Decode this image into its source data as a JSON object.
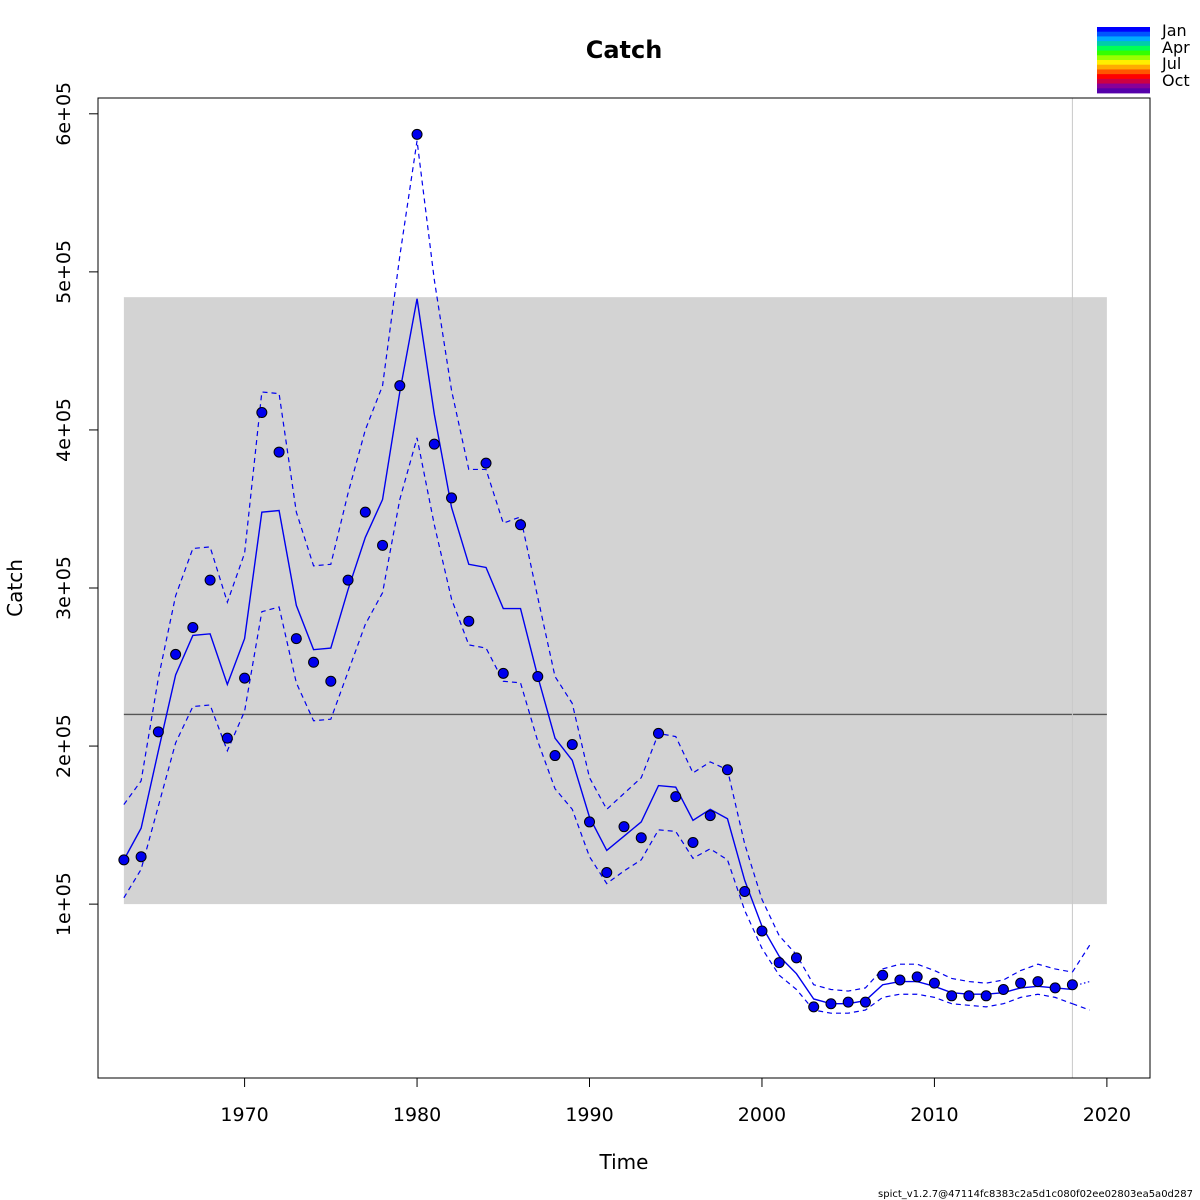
{
  "chart_data": {
    "type": "line",
    "title": "Catch",
    "xlabel": "Time",
    "ylabel": "Catch",
    "xlim": [
      1961.5,
      2022.5
    ],
    "ylim": [
      -10000,
      610000
    ],
    "x_ticks": [
      1970,
      1980,
      1990,
      2000,
      2010,
      2020
    ],
    "x_tick_labels": [
      "1970",
      "1980",
      "1990",
      "2000",
      "2010",
      "2020"
    ],
    "y_ticks": [
      100000,
      200000,
      300000,
      400000,
      500000,
      600000
    ],
    "y_tick_labels": [
      "1e+05",
      "2e+05",
      "3e+05",
      "4e+05",
      "5e+05",
      "6e+05"
    ],
    "grid": false,
    "reference_band": {
      "x": [
        1963,
        2020
      ],
      "y": [
        100000,
        484000
      ],
      "color": "#d3d3d3"
    },
    "reference_line": {
      "y": 220000,
      "color": "#555555"
    },
    "vertical_line": {
      "x": 2018,
      "color": "#c8c8c8"
    },
    "series": [
      {
        "role": "observed",
        "color": "#0000ee",
        "x": [
          1963,
          1964,
          1965,
          1966,
          1967,
          1968,
          1969,
          1970,
          1971,
          1972,
          1973,
          1974,
          1975,
          1976,
          1977,
          1978,
          1979,
          1980,
          1981,
          1982,
          1983,
          1984,
          1985,
          1986,
          1987,
          1988,
          1989,
          1990,
          1991,
          1992,
          1993,
          1994,
          1995,
          1996,
          1997,
          1998,
          1999,
          2000,
          2001,
          2002,
          2003,
          2004,
          2005,
          2006,
          2007,
          2008,
          2009,
          2010,
          2011,
          2012,
          2013,
          2014,
          2015,
          2016,
          2017,
          2018
        ],
        "y": [
          128000,
          130000,
          209000,
          258000,
          275000,
          305000,
          205000,
          243000,
          411000,
          386000,
          268000,
          253000,
          241000,
          305000,
          348000,
          327000,
          428000,
          587000,
          391000,
          357000,
          279000,
          379000,
          246000,
          340000,
          244000,
          194000,
          201000,
          152000,
          120000,
          149000,
          142000,
          208000,
          168000,
          139000,
          156000,
          185000,
          108000,
          83000,
          63000,
          66000,
          35000,
          37000,
          38000,
          38000,
          55000,
          52000,
          54000,
          50000,
          42000,
          42000,
          42000,
          46000,
          50000,
          51000,
          47000,
          49000
        ]
      },
      {
        "role": "estimate",
        "color": "#0000ee",
        "x": [
          1963,
          1964,
          1965,
          1966,
          1967,
          1968,
          1969,
          1970,
          1971,
          1972,
          1973,
          1974,
          1975,
          1976,
          1977,
          1978,
          1979,
          1980,
          1981,
          1982,
          1983,
          1984,
          1985,
          1986,
          1987,
          1988,
          1989,
          1990,
          1991,
          1992,
          1993,
          1994,
          1995,
          1996,
          1997,
          1998,
          1999,
          2000,
          2001,
          2002,
          2003,
          2004,
          2005,
          2006,
          2007,
          2008,
          2009,
          2010,
          2011,
          2012,
          2013,
          2014,
          2015,
          2016,
          2017,
          2018
        ],
        "y": [
          128000,
          148000,
          197000,
          245000,
          270000,
          271000,
          239000,
          268000,
          348000,
          349000,
          289000,
          261000,
          262000,
          299000,
          332000,
          356000,
          424000,
          483000,
          410000,
          351000,
          315000,
          313000,
          287000,
          287000,
          244000,
          205000,
          191000,
          155000,
          134000,
          143000,
          152000,
          175000,
          174000,
          153000,
          160000,
          154000,
          115000,
          86000,
          67000,
          56000,
          40000,
          37000,
          37000,
          39000,
          49000,
          51000,
          51000,
          48000,
          44000,
          43000,
          43000,
          44000,
          47000,
          48000,
          47000,
          46000
        ]
      },
      {
        "role": "upper-ci",
        "color": "#0000ee",
        "x": [
          1963,
          1964,
          1965,
          1966,
          1967,
          1968,
          1969,
          1970,
          1971,
          1972,
          1973,
          1974,
          1975,
          1976,
          1977,
          1978,
          1979,
          1980,
          1981,
          1982,
          1983,
          1984,
          1985,
          1986,
          1987,
          1988,
          1989,
          1990,
          1991,
          1992,
          1993,
          1994,
          1995,
          1996,
          1997,
          1998,
          1999,
          2000,
          2001,
          2002,
          2003,
          2004,
          2005,
          2006,
          2007,
          2008,
          2009,
          2010,
          2011,
          2012,
          2013,
          2014,
          2015,
          2016,
          2017,
          2018
        ],
        "y": [
          163000,
          178000,
          243000,
          295000,
          325000,
          326000,
          291000,
          322000,
          424000,
          423000,
          348000,
          314000,
          315000,
          360000,
          400000,
          428000,
          510000,
          583000,
          495000,
          425000,
          375000,
          375000,
          341000,
          345000,
          294000,
          244000,
          227000,
          180000,
          160000,
          170000,
          180000,
          208000,
          206000,
          183000,
          190000,
          185000,
          138000,
          103000,
          80000,
          68000,
          49000,
          46000,
          45000,
          47000,
          59000,
          62000,
          62000,
          58000,
          53000,
          51000,
          50000,
          52000,
          58000,
          62000,
          59000,
          57000
        ]
      },
      {
        "role": "lower-ci",
        "color": "#0000ee",
        "x": [
          1963,
          1964,
          1965,
          1966,
          1967,
          1968,
          1969,
          1970,
          1971,
          1972,
          1973,
          1974,
          1975,
          1976,
          1977,
          1978,
          1979,
          1980,
          1981,
          1982,
          1983,
          1984,
          1985,
          1986,
          1987,
          1988,
          1989,
          1990,
          1991,
          1992,
          1993,
          1994,
          1995,
          1996,
          1997,
          1998,
          1999,
          2000,
          2001,
          2002,
          2003,
          2004,
          2005,
          2006,
          2007,
          2008,
          2009,
          2010,
          2011,
          2012,
          2013,
          2014,
          2015,
          2016,
          2017,
          2018
        ],
        "y": [
          104000,
          122000,
          162000,
          202000,
          225000,
          226000,
          197000,
          222000,
          285000,
          288000,
          240000,
          216000,
          217000,
          247000,
          277000,
          297000,
          356000,
          395000,
          340000,
          293000,
          264000,
          262000,
          241000,
          240000,
          203000,
          173000,
          160000,
          130000,
          113000,
          121000,
          128000,
          147000,
          146000,
          129000,
          135000,
          128000,
          96000,
          72000,
          55000,
          46000,
          33000,
          31000,
          31000,
          33000,
          41000,
          43000,
          43000,
          41000,
          37000,
          36000,
          35000,
          37000,
          41000,
          43000,
          41000,
          37000
        ]
      },
      {
        "role": "forecast",
        "color": "#0000ee",
        "x": [
          2018,
          2019
        ],
        "y": [
          48000,
          51000
        ]
      },
      {
        "role": "forecast-upper",
        "color": "#0000ee",
        "x": [
          2018,
          2019
        ],
        "y": [
          57000,
          74000
        ]
      },
      {
        "role": "forecast-lower",
        "color": "#0000ee",
        "x": [
          2018,
          2019
        ],
        "y": [
          37000,
          33000
        ]
      }
    ],
    "legend": {
      "placement": "top-right",
      "entries": [
        "Jan",
        "Apr",
        "Jul",
        "Oct"
      ],
      "colors": [
        "#0000ff",
        "#0055ff",
        "#00aaff",
        "#00ccaa",
        "#00ff55",
        "#33ff00",
        "#99ff00",
        "#ffee00",
        "#ffaa00",
        "#ff5500",
        "#ff0000",
        "#cc0044",
        "#880099",
        "#5500aa"
      ]
    }
  },
  "footer": "spict_v1.2.7@47114fc8383c2a5d1c080f02ee02803ea5a0d287"
}
